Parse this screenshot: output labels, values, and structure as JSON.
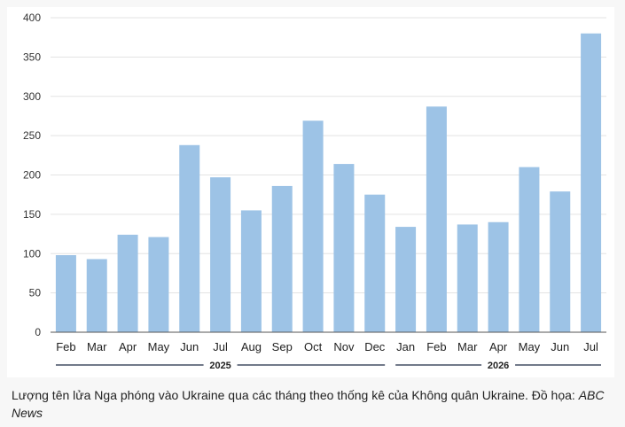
{
  "chart_data": {
    "type": "bar",
    "categories": [
      "Feb",
      "Mar",
      "Apr",
      "May",
      "Jun",
      "Jul",
      "Aug",
      "Sep",
      "Oct",
      "Nov",
      "Dec",
      "Jan",
      "Feb",
      "Mar",
      "Apr",
      "May",
      "Jun",
      "Jul"
    ],
    "values": [
      98,
      93,
      124,
      121,
      238,
      197,
      155,
      186,
      269,
      214,
      175,
      134,
      287,
      137,
      140,
      210,
      179,
      380
    ],
    "ylim": [
      0,
      400
    ],
    "yticks": [
      0,
      50,
      100,
      150,
      200,
      250,
      300,
      350,
      400
    ],
    "grid": true,
    "year_groups": [
      {
        "label": "2025",
        "start": 0,
        "end": 10
      },
      {
        "label": "2026",
        "start": 11,
        "end": 17
      }
    ],
    "bar_color": "#9dc3e6"
  },
  "caption": {
    "text": "Lượng tên lửa Nga phóng vào Ukraine qua các tháng theo thống kê của Không quân Ukraine. Đồ họa: ",
    "credit": "ABC News"
  }
}
